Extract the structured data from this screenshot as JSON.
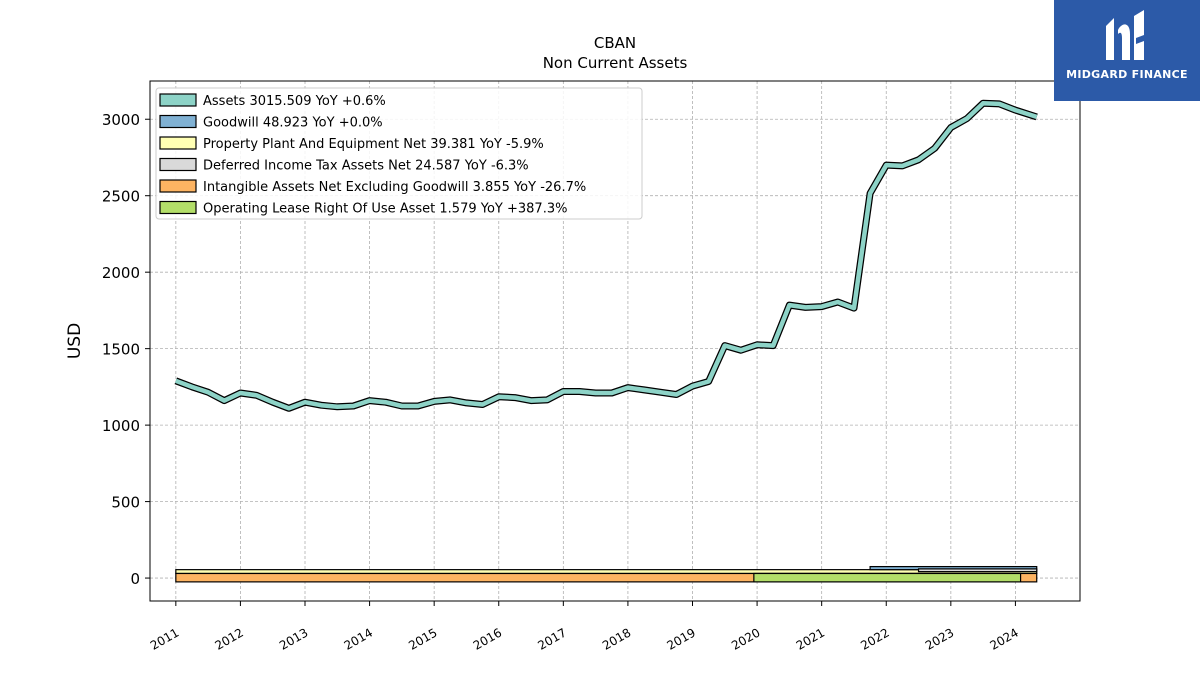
{
  "chart_data": {
    "type": "line",
    "title": "CBAN",
    "subtitle": "Non Current  Assets",
    "ylabel": "USD",
    "xlabel": "",
    "xlim": [
      2010.6,
      2025.0
    ],
    "ylim": [
      -150,
      3250
    ],
    "yticks": [
      0,
      500,
      1000,
      1500,
      2000,
      2500,
      3000
    ],
    "xticks": [
      "2011",
      "2012",
      "2013",
      "2014",
      "2015",
      "2016",
      "2017",
      "2018",
      "2019",
      "2020",
      "2021",
      "2022",
      "2023",
      "2024"
    ],
    "grid": true,
    "legend_position": "top-left",
    "series": [
      {
        "name": "Assets  3015.509 YoY +0.6%",
        "color": "#8dd3c7",
        "x": [
          2011.0,
          2011.25,
          2011.5,
          2011.75,
          2012.0,
          2012.25,
          2012.5,
          2012.75,
          2013.0,
          2013.25,
          2013.5,
          2013.75,
          2014.0,
          2014.25,
          2014.5,
          2014.75,
          2015.0,
          2015.25,
          2015.5,
          2015.75,
          2016.0,
          2016.25,
          2016.5,
          2016.75,
          2017.0,
          2017.25,
          2017.5,
          2017.75,
          2018.0,
          2018.25,
          2018.5,
          2018.75,
          2019.0,
          2019.25,
          2019.5,
          2019.75,
          2020.0,
          2020.25,
          2020.5,
          2020.75,
          2021.0,
          2021.25,
          2021.5,
          2021.75,
          2022.0,
          2022.25,
          2022.5,
          2022.75,
          2023.0,
          2023.25,
          2023.5,
          2023.75,
          2024.0,
          2024.33
        ],
        "values": [
          1290,
          1250,
          1215,
          1160,
          1210,
          1195,
          1150,
          1110,
          1150,
          1130,
          1120,
          1125,
          1160,
          1150,
          1125,
          1125,
          1155,
          1165,
          1145,
          1135,
          1185,
          1180,
          1160,
          1165,
          1220,
          1220,
          1210,
          1210,
          1245,
          1230,
          1215,
          1200,
          1255,
          1285,
          1520,
          1490,
          1525,
          1520,
          1785,
          1770,
          1775,
          1805,
          1765,
          2515,
          2700,
          2695,
          2735,
          2810,
          2945,
          3005,
          3105,
          3100,
          3060,
          3015
        ]
      },
      {
        "name": "Goodwill  48.923 YoY +0.0%",
        "color": "#80b1d3",
        "x": [
          2011.0,
          2019.0,
          2019.5,
          2021.75,
          2022.5,
          2024.33
        ],
        "values": [
          0,
          0,
          0,
          0,
          48.9,
          48.9
        ]
      },
      {
        "name": "Property Plant And Equipment Net  39.381 YoY -5.9%",
        "color": "#ffffb3",
        "x": [
          2011.0,
          2013.0,
          2015.0,
          2017.0,
          2018.0,
          2019.0,
          2019.5,
          2020.0,
          2021.0,
          2021.75,
          2022.0,
          2022.5,
          2023.0,
          2024.0,
          2024.33
        ],
        "values": [
          42,
          40,
          39,
          43,
          45,
          45,
          47,
          48,
          46,
          44,
          46,
          45,
          44,
          42,
          39.4
        ]
      },
      {
        "name": "Deferred Income Tax Assets Net  24.587 YoY -6.3%",
        "color": "#d9d9d9",
        "x": [
          2011.0,
          2019.0,
          2021.75,
          2022.0,
          2022.5,
          2023.0,
          2024.0,
          2024.33
        ],
        "values": [
          0,
          0,
          0,
          35,
          32,
          28,
          26,
          24.6
        ]
      },
      {
        "name": "Intangible Assets Net Excluding Goodwill  3.855 YoY -26.7%",
        "color": "#fdb462",
        "x": [
          2011.0,
          2013.0,
          2015.0,
          2017.0,
          2019.0,
          2019.5,
          2020.0,
          2022.0,
          2024.0,
          2024.33
        ],
        "values": [
          8,
          8,
          7,
          6,
          5,
          6,
          6,
          5,
          4,
          3.9
        ]
      },
      {
        "name": "Operating Lease Right Of Use Asset  1.579 YoY +387.3%",
        "color": "#b3de69",
        "x": [
          2019.95,
          2021.0,
          2022.0,
          2023.0,
          2024.0,
          2024.08
        ],
        "values": [
          3,
          3,
          2.5,
          2,
          1.6,
          1.6
        ]
      }
    ]
  },
  "brand": {
    "name": "MIDGARD FINANCE",
    "color": "#2c5aa8"
  }
}
